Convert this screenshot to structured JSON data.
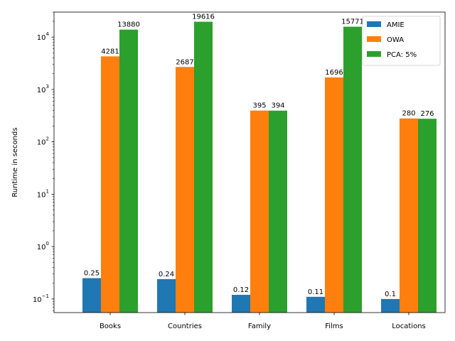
{
  "chart_data": {
    "type": "bar",
    "title": "",
    "xlabel": "",
    "ylabel": "Runtime in seconds",
    "yscale": "log",
    "ylim": [
      0.055,
      30000
    ],
    "yticks": [
      {
        "value": 0.1,
        "base": "10",
        "exp": "−1"
      },
      {
        "value": 1,
        "base": "10",
        "exp": "0"
      },
      {
        "value": 10,
        "base": "10",
        "exp": "1"
      },
      {
        "value": 100,
        "base": "10",
        "exp": "2"
      },
      {
        "value": 1000,
        "base": "10",
        "exp": "3"
      },
      {
        "value": 10000,
        "base": "10",
        "exp": "4"
      }
    ],
    "grid": false,
    "legend_position": "top-right",
    "categories": [
      "Books",
      "Countries",
      "Family",
      "Films",
      "Locations"
    ],
    "series": [
      {
        "name": "AMIE",
        "color": "#1f77b4",
        "values": [
          0.25,
          0.24,
          0.12,
          0.11,
          0.1
        ],
        "labels": [
          "0.25",
          "0.24",
          "0.12",
          "0.11",
          "0.1"
        ]
      },
      {
        "name": "OWA",
        "color": "#ff7f0e",
        "values": [
          4281,
          2687,
          395,
          1696,
          280
        ],
        "labels": [
          "4281",
          "2687",
          "395",
          "1696",
          "280"
        ]
      },
      {
        "name": "PCA: 5%",
        "color": "#2ca02c",
        "values": [
          13880,
          19616,
          394,
          15771,
          276
        ],
        "labels": [
          "13880",
          "19616",
          "394",
          "15771",
          "276"
        ]
      }
    ]
  }
}
